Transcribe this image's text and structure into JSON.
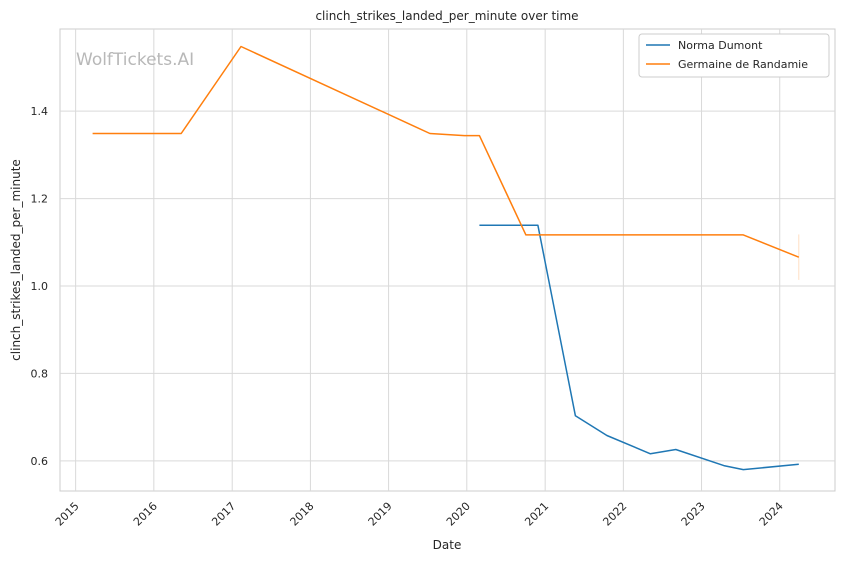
{
  "chart_data": {
    "type": "line",
    "title": "clinch_strikes_landed_per_minute over time",
    "xlabel": "Date",
    "ylabel": "clinch_strikes_landed_per_minute",
    "watermark": "WolfTickets.AI",
    "x_ticks": [
      "2015",
      "2016",
      "2017",
      "2018",
      "2019",
      "2020",
      "2021",
      "2022",
      "2023",
      "2024"
    ],
    "y_ticks": [
      "0.6",
      "0.8",
      "1.0",
      "1.2",
      "1.4"
    ],
    "xlim": [
      "2014-10-20",
      "2024-09-15"
    ],
    "ylim": [
      0.531,
      1.588
    ],
    "grid": true,
    "legend_position": "top-right",
    "series": [
      {
        "name": "Norma Dumont",
        "color": "#1f77b4",
        "points": [
          {
            "x": "2020-02-29",
            "y": 1.139
          },
          {
            "x": "2020-11-28",
            "y": 1.139
          },
          {
            "x": "2021-05-22",
            "y": 0.703
          },
          {
            "x": "2021-10-16",
            "y": 0.658
          },
          {
            "x": "2022-05-07",
            "y": 0.616
          },
          {
            "x": "2022-09-03",
            "y": 0.626
          },
          {
            "x": "2023-04-15",
            "y": 0.589
          },
          {
            "x": "2023-07-15",
            "y": 0.58
          },
          {
            "x": "2024-03-30",
            "y": 0.592
          }
        ]
      },
      {
        "name": "Germaine de Randamie",
        "color": "#ff7f0e",
        "points": [
          {
            "x": "2015-03-21",
            "y": 1.349
          },
          {
            "x": "2016-05-08",
            "y": 1.349
          },
          {
            "x": "2017-02-11",
            "y": 1.548
          },
          {
            "x": "2019-07-13",
            "y": 1.349
          },
          {
            "x": "2019-12-21",
            "y": 1.344
          },
          {
            "x": "2020-02-29",
            "y": 1.344
          },
          {
            "x": "2020-10-03",
            "y": 1.117
          },
          {
            "x": "2023-07-15",
            "y": 1.117
          },
          {
            "x": "2024-03-30",
            "y": 1.066
          }
        ],
        "error_bar": {
          "x": "2024-03-30",
          "low": 1.014,
          "high": 1.118
        }
      }
    ]
  }
}
